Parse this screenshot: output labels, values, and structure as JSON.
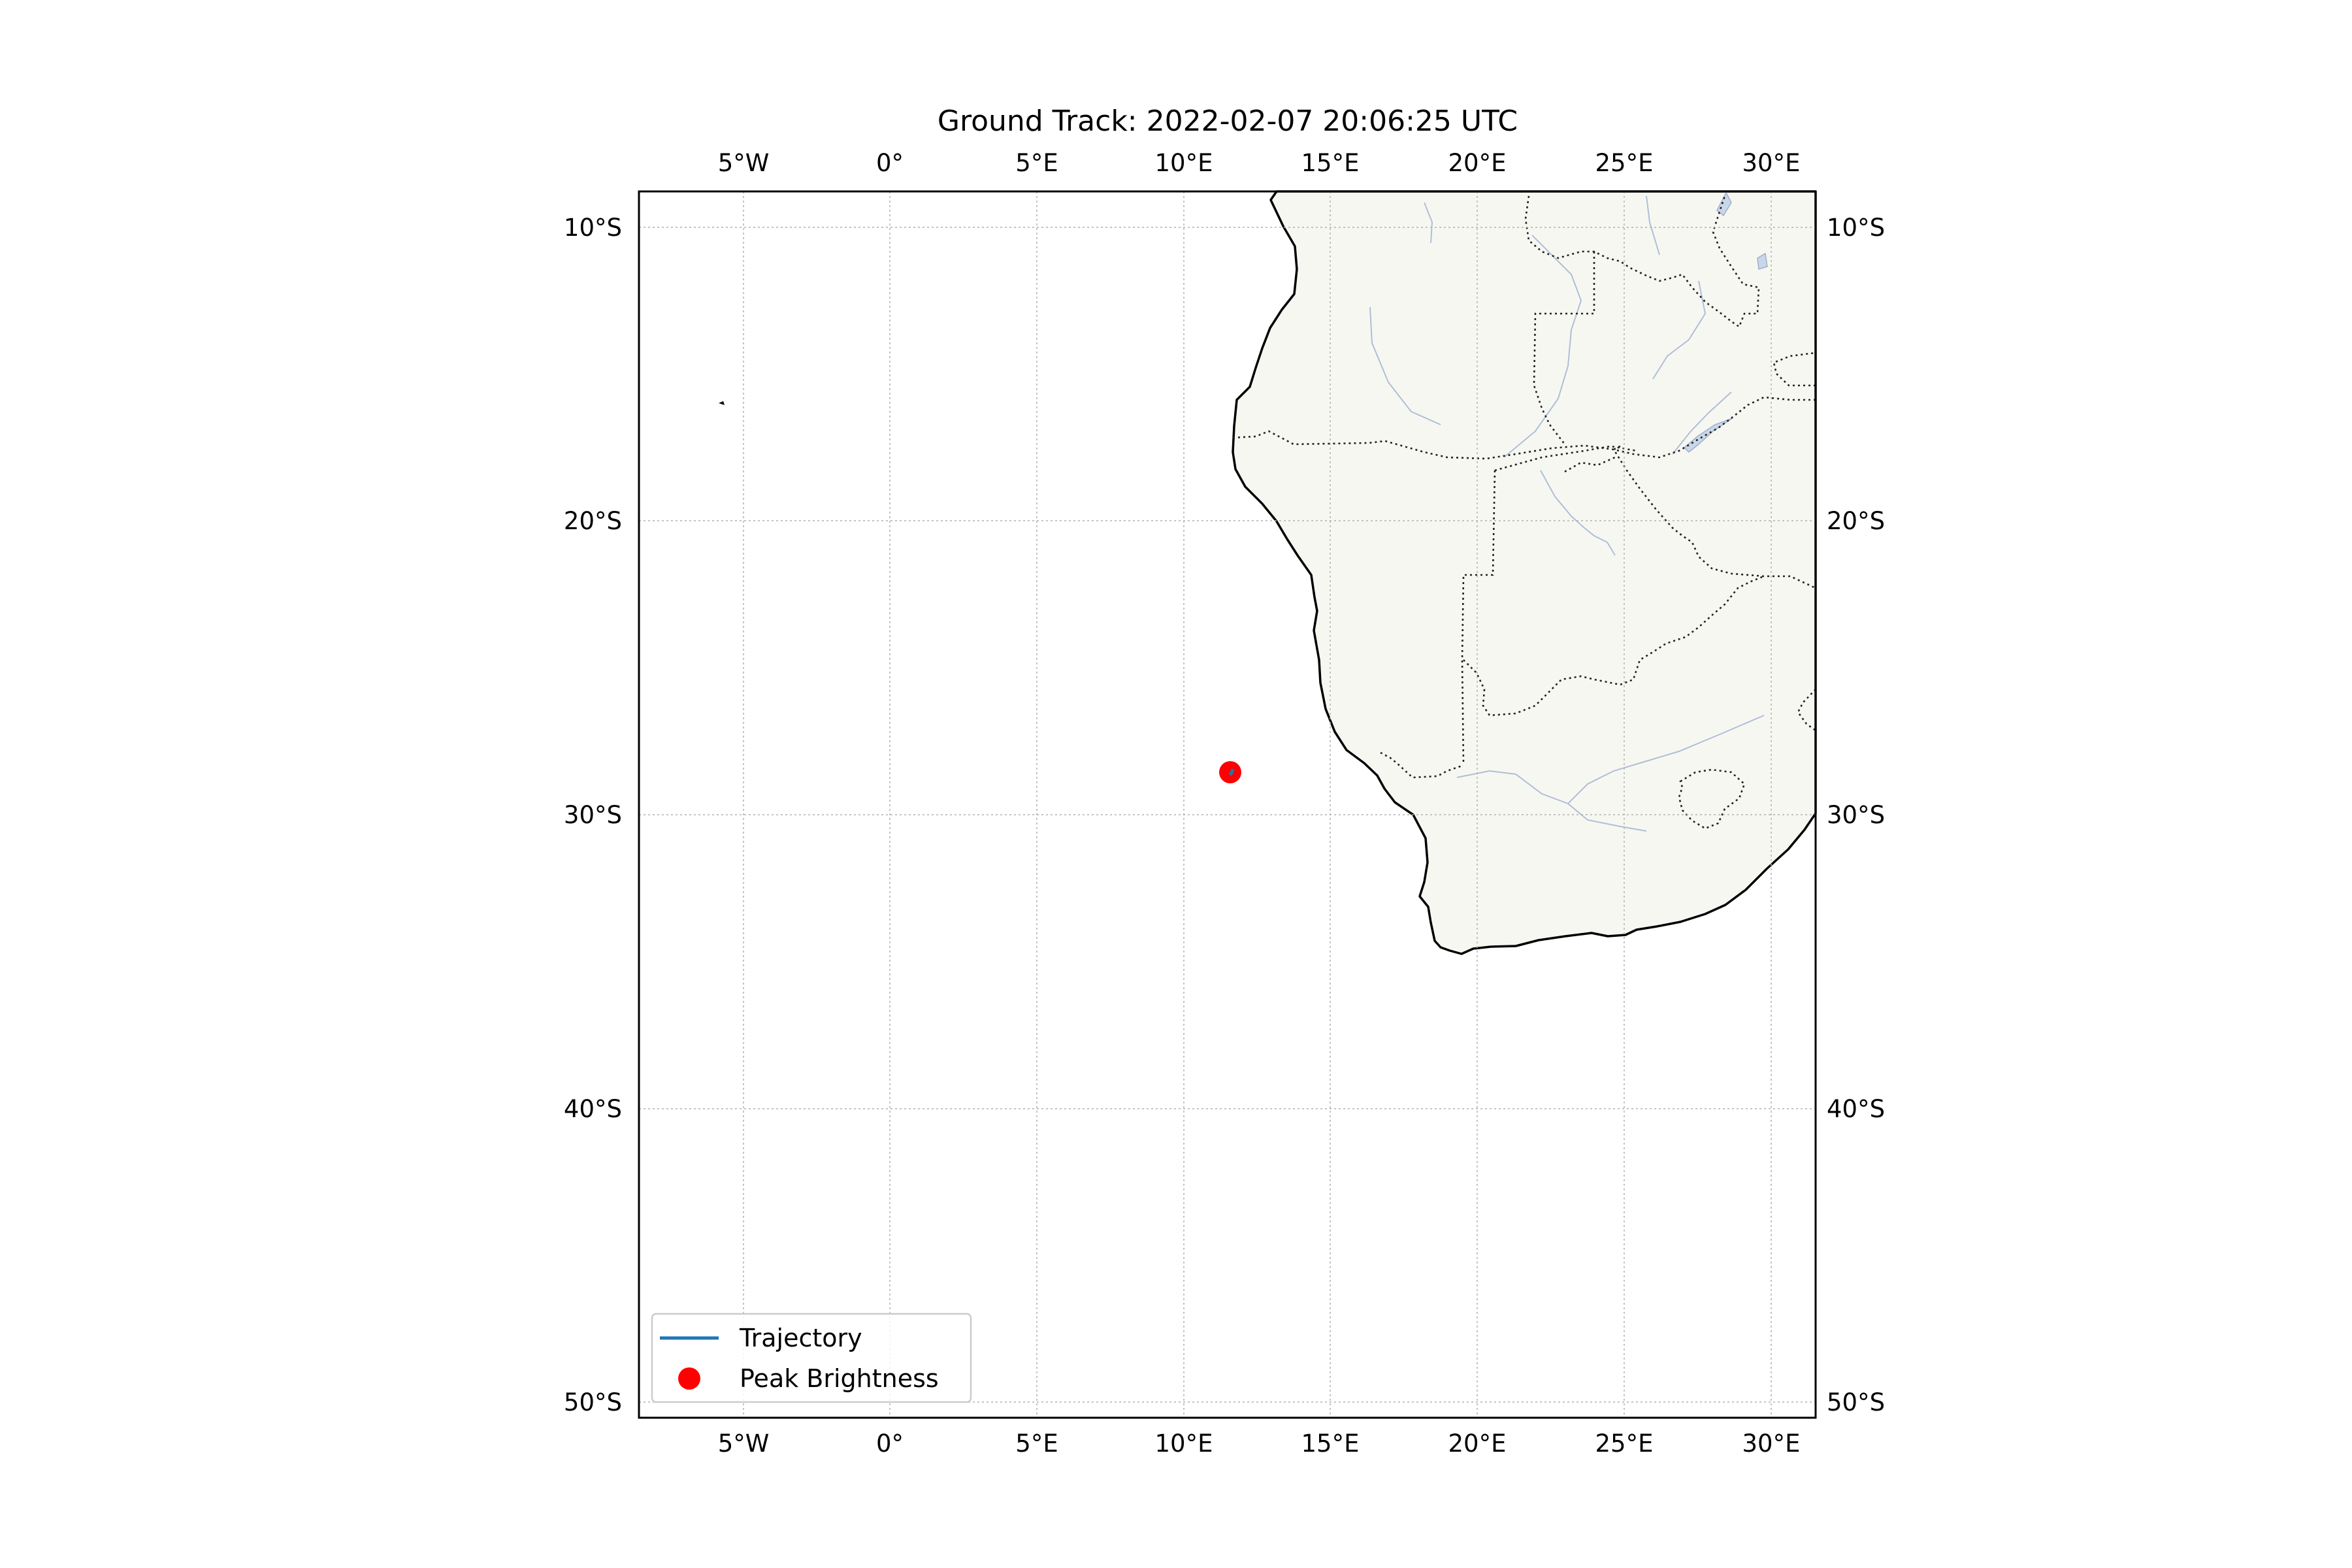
{
  "title": "Ground Track: 2022-02-07 20:06:25 UTC",
  "map": {
    "extent": {
      "lon_min": -8.6,
      "lon_max": 31.4,
      "lat_min": -50.5,
      "lat_max": -8.8
    },
    "longitude_ticks": [
      {
        "value": -5,
        "label": "5°W"
      },
      {
        "value": 0,
        "label": "0°"
      },
      {
        "value": 5,
        "label": "5°E"
      },
      {
        "value": 10,
        "label": "10°E"
      },
      {
        "value": 15,
        "label": "15°E"
      },
      {
        "value": 20,
        "label": "20°E"
      },
      {
        "value": 25,
        "label": "25°E"
      },
      {
        "value": 30,
        "label": "30°E"
      }
    ],
    "latitude_ticks": [
      {
        "value": -10,
        "label": "10°S"
      },
      {
        "value": -20,
        "label": "20°S"
      },
      {
        "value": -30,
        "label": "30°S"
      },
      {
        "value": -40,
        "label": "40°S"
      },
      {
        "value": -50,
        "label": "50°S"
      }
    ],
    "gridlines": true,
    "land_color": "#f7f7f2",
    "coastline_color": "#000000",
    "border_color": "#222222",
    "river_color": "#aebfd6"
  },
  "legend": {
    "placement": "lower-left",
    "items": [
      {
        "label": "Trajectory",
        "color": "#1f77b4",
        "marker": "line"
      },
      {
        "label": "Peak Brightness",
        "color": "#ff0000",
        "marker": "circle"
      }
    ]
  },
  "chart_data": {
    "type": "scatter",
    "title": "Ground Track: 2022-02-07 20:06:25 UTC",
    "series": [
      {
        "name": "Trajectory",
        "color": "#1f77b4",
        "points": [
          {
            "lon": 11.5,
            "lat": -28.65
          },
          {
            "lon": 11.6,
            "lat": -28.45
          }
        ]
      },
      {
        "name": "Peak Brightness",
        "color": "#ff0000",
        "points": [
          {
            "lon": 11.5,
            "lat": -28.55
          }
        ]
      }
    ],
    "xlim": [
      -8.6,
      31.4
    ],
    "ylim": [
      -50.5,
      -8.8
    ]
  }
}
